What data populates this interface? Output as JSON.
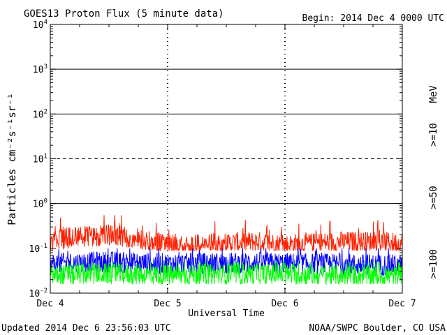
{
  "header": {
    "title": "GOES13 Proton Flux (5 minute data)",
    "begin": "Begin: 2014 Dec 4 0000 UTC"
  },
  "footer": {
    "updated": "Updated 2014 Dec  6 23:56:03 UTC",
    "credit": "NOAA/SWPC Boulder, CO USA"
  },
  "colors": {
    "ge10": "#ff2000",
    "ge50": "#0000ff",
    "ge100": "#00ff00",
    "axis": "#000000",
    "background": "#ffffff"
  },
  "chart_data": {
    "type": "line",
    "title": "GOES13 Proton Flux (5 minute data)",
    "xlabel": "Universal Time",
    "ylabel": "Particles cm⁻²s⁻¹sr⁻¹",
    "yscale": "log",
    "ylim": [
      0.01,
      10000
    ],
    "yticks": [
      {
        "value": 0.01,
        "base": "10",
        "exp": "-2"
      },
      {
        "value": 0.1,
        "base": "10",
        "exp": "-1"
      },
      {
        "value": 1,
        "base": "10",
        "exp": "0"
      },
      {
        "value": 10,
        "base": "10",
        "exp": "1"
      },
      {
        "value": 100,
        "base": "10",
        "exp": "2"
      },
      {
        "value": 1000,
        "base": "10",
        "exp": "3"
      },
      {
        "value": 10000,
        "base": "10",
        "exp": "4"
      }
    ],
    "xlim": [
      "2014-12-04",
      "2014-12-07"
    ],
    "xticks": [
      {
        "date": "2014-12-04",
        "label": "Dec 4"
      },
      {
        "date": "2014-12-05",
        "label": "Dec 5"
      },
      {
        "date": "2014-12-06",
        "label": "Dec 6"
      },
      {
        "date": "2014-12-07",
        "label": "Dec 7"
      }
    ],
    "threshold_lines": [
      {
        "value": 1,
        "style": "solid"
      },
      {
        "value": 10,
        "style": "dashed"
      },
      {
        "value": 100,
        "style": "solid"
      },
      {
        "value": 1000,
        "style": "solid"
      }
    ],
    "legend_unit": "MeV",
    "series": [
      {
        "name": ">=10",
        "color": "#ff2000",
        "x": [
          "2014-12-04",
          "2014-12-04T06:00",
          "2014-12-04T12:00",
          "2014-12-04T18:00",
          "2014-12-05",
          "2014-12-05T06:00",
          "2014-12-05T12:00",
          "2014-12-05T18:00",
          "2014-12-06",
          "2014-12-06T06:00",
          "2014-12-06T12:00",
          "2014-12-06T18:00",
          "2014-12-06T23:55"
        ],
        "y": [
          0.15,
          0.18,
          0.2,
          0.16,
          0.13,
          0.12,
          0.13,
          0.14,
          0.12,
          0.13,
          0.14,
          0.14,
          0.13
        ],
        "min_y": 0.09,
        "max_y": 0.55
      },
      {
        "name": ">=50",
        "color": "#0000ff",
        "x": [
          "2014-12-04",
          "2014-12-04T06:00",
          "2014-12-04T12:00",
          "2014-12-04T18:00",
          "2014-12-05",
          "2014-12-05T06:00",
          "2014-12-05T12:00",
          "2014-12-05T18:00",
          "2014-12-06",
          "2014-12-06T06:00",
          "2014-12-06T12:00",
          "2014-12-06T18:00",
          "2014-12-06T23:55"
        ],
        "y": [
          0.045,
          0.048,
          0.05,
          0.047,
          0.045,
          0.046,
          0.047,
          0.048,
          0.046,
          0.045,
          0.044,
          0.043,
          0.042
        ],
        "min_y": 0.025,
        "max_y": 0.1
      },
      {
        "name": ">=100",
        "color": "#00ff00",
        "x": [
          "2014-12-04",
          "2014-12-04T06:00",
          "2014-12-04T12:00",
          "2014-12-04T18:00",
          "2014-12-05",
          "2014-12-05T06:00",
          "2014-12-05T12:00",
          "2014-12-05T18:00",
          "2014-12-06",
          "2014-12-06T06:00",
          "2014-12-06T12:00",
          "2014-12-06T18:00",
          "2014-12-06T23:55"
        ],
        "y": [
          0.025,
          0.026,
          0.027,
          0.026,
          0.025,
          0.026,
          0.026,
          0.027,
          0.026,
          0.025,
          0.025,
          0.024,
          0.024
        ],
        "min_y": 0.016,
        "max_y": 0.05
      }
    ]
  }
}
